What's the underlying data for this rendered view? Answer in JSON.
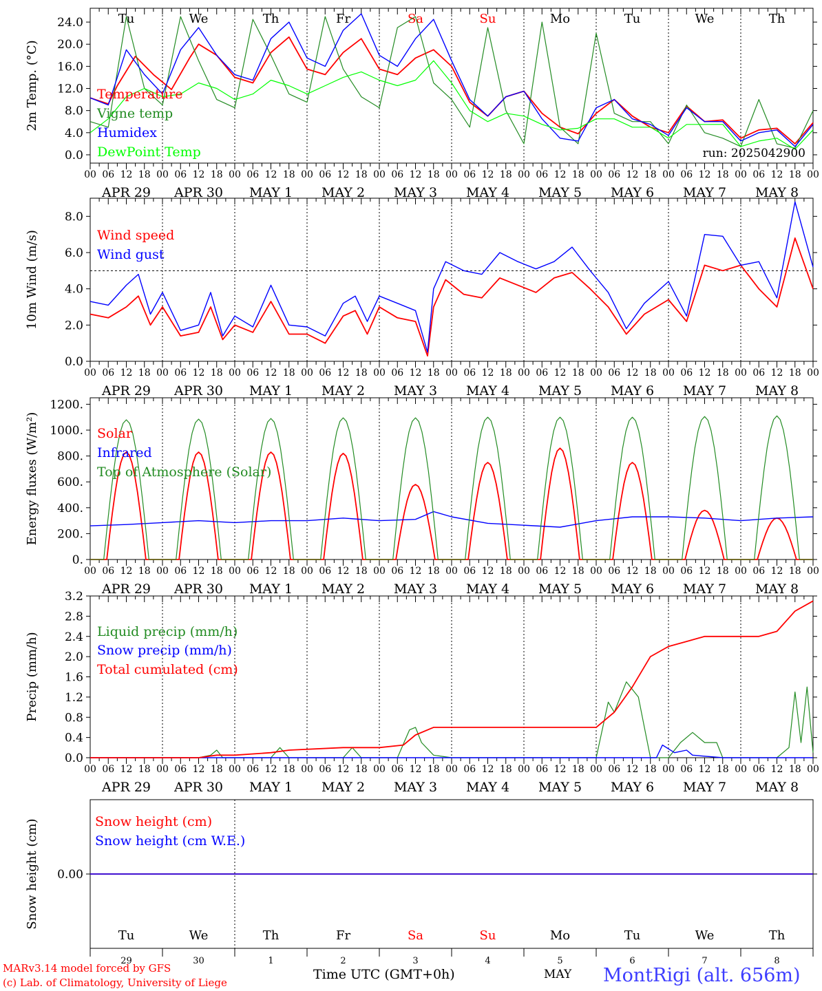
{
  "day_names": [
    "Tu",
    "We",
    "Th",
    "Fr",
    "Sa",
    "Su",
    "Mo",
    "Tu",
    "We",
    "Th"
  ],
  "weekend_days": [
    4,
    5
  ],
  "date_labels": [
    "APR 29",
    "APR 30",
    "MAY  1",
    "MAY  2",
    "MAY  3",
    "MAY  4",
    "MAY  5",
    "MAY  6",
    "MAY  7",
    "MAY  8"
  ],
  "hour_ticks": [
    "00",
    "06",
    "12",
    "18"
  ],
  "hour_end_label": "00",
  "bottom_day_numbers": [
    "29",
    "30",
    "1",
    "2",
    "3",
    "4",
    "5",
    "6",
    "7",
    "8"
  ],
  "colors": {
    "red": "#ff0000",
    "darkgreen": "#228b22",
    "blue": "#0000ff",
    "lightgreen": "#00ff00",
    "weekend": "#ff0000"
  },
  "footer": {
    "credit_line1": "MARv3.14 model forced by GFS",
    "credit_line2": "(c) Lab. of Climatology, University of Liege",
    "time_axis_label": "Time UTC (GMT+0h)",
    "month_label": "MAY",
    "station": "MontRigi (alt. 656m)"
  },
  "chart_data": [
    {
      "type": "line",
      "title": "",
      "ylabel": "2m Temp. (°C)",
      "ylim": [
        -1.5,
        26.5
      ],
      "yticks": [
        "0.0",
        "4.0",
        "8.0",
        "12.0",
        "16.0",
        "20.0",
        "24.0"
      ],
      "x_unit": "hours since APR 29 00 UTC",
      "xlim": [
        0,
        240
      ],
      "annotation": "run: 2025042900",
      "series": [
        {
          "name": "Temperature",
          "color": "red",
          "x": [
            0,
            6,
            9,
            15,
            21,
            27,
            33,
            36,
            42,
            48,
            54,
            60,
            66,
            72,
            78,
            84,
            90,
            96,
            102,
            108,
            114,
            120,
            126,
            132,
            138,
            144,
            150,
            156,
            162,
            168,
            174,
            180,
            186,
            192,
            198,
            204,
            210,
            216,
            222,
            228,
            234,
            240
          ],
          "y": [
            10.3,
            9.2,
            12.5,
            17.8,
            14.5,
            11.8,
            17.5,
            20.0,
            18.0,
            14.0,
            13.0,
            18.5,
            21.3,
            15.5,
            14.5,
            18.5,
            21.0,
            15.5,
            14.5,
            17.5,
            19.0,
            16.0,
            9.5,
            7.0,
            10.5,
            11.5,
            7.5,
            5.0,
            3.8,
            7.5,
            10.0,
            7.0,
            5.0,
            4.0,
            8.8,
            6.0,
            6.3,
            3.0,
            4.5,
            4.8,
            2.0,
            5.8
          ]
        },
        {
          "name": "Vigne temp",
          "color": "darkgreen",
          "x": [
            0,
            6,
            12,
            18,
            24,
            30,
            36,
            42,
            48,
            54,
            60,
            66,
            72,
            78,
            84,
            90,
            96,
            102,
            108,
            114,
            120,
            126,
            132,
            138,
            144,
            150,
            156,
            162,
            168,
            174,
            180,
            186,
            192,
            198,
            204,
            210,
            216,
            222,
            228,
            234,
            240
          ],
          "y": [
            6.0,
            5.0,
            25.0,
            12.0,
            9.0,
            25.0,
            17.0,
            10.0,
            8.5,
            24.5,
            18.0,
            11.0,
            9.5,
            25.0,
            15.5,
            10.5,
            8.5,
            23.0,
            25.0,
            13.0,
            10.0,
            5.0,
            23.0,
            8.0,
            2.0,
            24.0,
            5.0,
            2.0,
            22.0,
            7.5,
            6.0,
            6.0,
            2.0,
            9.0,
            4.0,
            3.0,
            1.5,
            10.0,
            2.0,
            1.2,
            8.0
          ]
        },
        {
          "name": "Humidex",
          "color": "blue",
          "x": [
            0,
            6,
            12,
            18,
            24,
            30,
            36,
            42,
            48,
            54,
            60,
            66,
            72,
            78,
            84,
            90,
            96,
            102,
            108,
            114,
            120,
            126,
            132,
            138,
            144,
            150,
            156,
            162,
            168,
            174,
            180,
            186,
            192,
            198,
            204,
            210,
            216,
            222,
            228,
            234,
            240
          ],
          "y": [
            10.3,
            9.0,
            19.0,
            14.5,
            11.0,
            19.0,
            23.0,
            18.0,
            14.5,
            13.5,
            21.0,
            24.0,
            17.5,
            16.0,
            22.5,
            25.5,
            18.0,
            16.0,
            21.0,
            24.5,
            17.0,
            10.0,
            7.0,
            10.5,
            11.5,
            6.5,
            3.0,
            2.5,
            8.5,
            10.0,
            6.5,
            5.5,
            3.5,
            8.5,
            6.0,
            6.0,
            2.5,
            4.0,
            4.5,
            1.5,
            5.5
          ]
        },
        {
          "name": "DewPoint Temp",
          "color": "lightgreen",
          "x": [
            0,
            6,
            12,
            18,
            24,
            30,
            36,
            42,
            48,
            54,
            60,
            66,
            72,
            78,
            84,
            90,
            96,
            102,
            108,
            114,
            120,
            126,
            132,
            138,
            144,
            150,
            156,
            162,
            168,
            174,
            180,
            186,
            192,
            198,
            204,
            210,
            216,
            222,
            228,
            234,
            240
          ],
          "y": [
            4.0,
            6.5,
            10.5,
            12.0,
            10.5,
            11.0,
            13.0,
            12.0,
            10.0,
            11.0,
            13.5,
            12.5,
            11.0,
            12.5,
            14.0,
            15.0,
            13.5,
            12.5,
            13.5,
            17.0,
            13.0,
            8.0,
            6.0,
            7.5,
            7.0,
            5.5,
            4.5,
            4.8,
            6.5,
            6.5,
            5.0,
            5.0,
            3.0,
            5.5,
            5.5,
            5.5,
            1.5,
            2.5,
            3.0,
            1.0,
            4.5
          ]
        }
      ]
    },
    {
      "type": "line",
      "title": "",
      "ylabel": "10m Wind (m/s)",
      "ylim": [
        0,
        9
      ],
      "yticks": [
        "0.0",
        "2.0",
        "4.0",
        "6.0",
        "8.0"
      ],
      "reference_line": 5.0,
      "x_unit": "hours since APR 29 00 UTC",
      "xlim": [
        0,
        240
      ],
      "series": [
        {
          "name": "Wind speed",
          "color": "red",
          "x": [
            0,
            6,
            12,
            16,
            20,
            24,
            30,
            36,
            40,
            44,
            48,
            54,
            60,
            66,
            72,
            78,
            84,
            88,
            92,
            96,
            102,
            108,
            112,
            114,
            118,
            124,
            130,
            136,
            142,
            148,
            154,
            160,
            166,
            172,
            178,
            184,
            192,
            198,
            204,
            210,
            216,
            222,
            228,
            234,
            240
          ],
          "y": [
            2.6,
            2.4,
            3.0,
            3.6,
            2.0,
            3.0,
            1.4,
            1.6,
            3.0,
            1.2,
            2.0,
            1.6,
            3.3,
            1.5,
            1.5,
            1.0,
            2.5,
            2.8,
            1.5,
            3.0,
            2.4,
            2.2,
            0.3,
            3.0,
            4.5,
            3.7,
            3.5,
            4.6,
            4.2,
            3.8,
            4.6,
            4.9,
            4.0,
            3.0,
            1.5,
            2.6,
            3.4,
            2.2,
            5.3,
            5.0,
            5.3,
            4.0,
            3.0,
            6.8,
            4.0
          ]
        },
        {
          "name": "Wind gust",
          "color": "blue",
          "x": [
            0,
            6,
            12,
            16,
            20,
            24,
            30,
            36,
            40,
            44,
            48,
            54,
            60,
            66,
            72,
            78,
            84,
            88,
            92,
            96,
            102,
            108,
            112,
            114,
            118,
            124,
            130,
            136,
            142,
            148,
            154,
            160,
            166,
            172,
            178,
            184,
            192,
            198,
            204,
            210,
            216,
            222,
            228,
            234,
            240
          ],
          "y": [
            3.3,
            3.1,
            4.2,
            4.8,
            2.6,
            3.8,
            1.7,
            2.0,
            3.8,
            1.4,
            2.5,
            1.9,
            4.2,
            2.0,
            1.9,
            1.4,
            3.2,
            3.6,
            2.2,
            3.6,
            3.2,
            2.8,
            0.5,
            4.0,
            5.5,
            5.0,
            4.8,
            6.0,
            5.5,
            5.1,
            5.5,
            6.3,
            5.0,
            3.8,
            1.8,
            3.2,
            4.4,
            2.5,
            7.0,
            6.9,
            5.3,
            5.5,
            3.5,
            8.8,
            5.2
          ]
        }
      ]
    },
    {
      "type": "line",
      "title": "",
      "ylabel": "Energy fluxes (W/m²)",
      "ylim": [
        0,
        1250
      ],
      "yticks": [
        "0.",
        "200.",
        "400.",
        "600.",
        "800.",
        "1000.",
        "1200."
      ],
      "x_unit": "hours since APR 29 00 UTC",
      "xlim": [
        0,
        240
      ],
      "series": [
        {
          "name": "Solar",
          "color": "red",
          "day_peaks": [
            830,
            830,
            830,
            820,
            580,
            750,
            860,
            750,
            380,
            320
          ],
          "night_value": 0
        },
        {
          "name": "Infrared",
          "color": "blue",
          "x": [
            0,
            12,
            24,
            36,
            48,
            60,
            72,
            84,
            96,
            108,
            114,
            120,
            132,
            144,
            156,
            168,
            180,
            192,
            204,
            216,
            228,
            240
          ],
          "y": [
            260,
            270,
            285,
            300,
            285,
            300,
            300,
            320,
            300,
            310,
            370,
            330,
            280,
            265,
            250,
            300,
            330,
            330,
            320,
            300,
            320,
            330
          ]
        },
        {
          "name": "Top of Atmosphere (Solar)",
          "color": "darkgreen",
          "day_peaks": [
            1080,
            1085,
            1090,
            1095,
            1095,
            1100,
            1100,
            1100,
            1105,
            1110
          ],
          "night_value": 0
        }
      ]
    },
    {
      "type": "line",
      "title": "",
      "ylabel": "Precip (mm/h)",
      "ylim": [
        0,
        3.2
      ],
      "yticks": [
        "0.0",
        "0.4",
        "0.8",
        "1.2",
        "1.6",
        "2.0",
        "2.4",
        "2.8",
        "3.2"
      ],
      "x_unit": "hours since APR 29 00 UTC",
      "xlim": [
        0,
        240
      ],
      "series": [
        {
          "name": "Liquid precip (mm/h)",
          "color": "darkgreen",
          "x": [
            0,
            36,
            40,
            42,
            44,
            48,
            60,
            63,
            66,
            84,
            87,
            90,
            102,
            106,
            108,
            110,
            114,
            120,
            168,
            172,
            174,
            178,
            182,
            184,
            186,
            192,
            196,
            200,
            204,
            208,
            210,
            228,
            232,
            234,
            236,
            238,
            240
          ],
          "y": [
            0,
            0,
            0.05,
            0.15,
            0,
            0,
            0,
            0.2,
            0,
            0,
            0.2,
            0,
            0,
            0.55,
            0.6,
            0.3,
            0.05,
            0,
            0,
            1.1,
            0.9,
            1.5,
            1.2,
            0.6,
            0,
            0,
            0.3,
            0.5,
            0.3,
            0.3,
            0,
            0,
            0.2,
            1.3,
            0.3,
            1.4,
            0.1
          ]
        },
        {
          "name": "Snow precip (mm/h)",
          "color": "blue",
          "x": [
            0,
            188,
            190,
            194,
            198,
            200,
            210,
            240
          ],
          "y": [
            0,
            0,
            0.25,
            0.1,
            0.15,
            0.05,
            0,
            0
          ]
        },
        {
          "name": "Total cumulated (cm)",
          "color": "red",
          "x": [
            0,
            36,
            42,
            48,
            60,
            66,
            84,
            90,
            96,
            104,
            108,
            114,
            120,
            168,
            174,
            180,
            186,
            192,
            198,
            204,
            216,
            222,
            228,
            234,
            240
          ],
          "y": [
            0,
            0,
            0.05,
            0.05,
            0.1,
            0.15,
            0.2,
            0.2,
            0.2,
            0.25,
            0.45,
            0.6,
            0.6,
            0.6,
            0.9,
            1.4,
            2.0,
            2.2,
            2.3,
            2.4,
            2.4,
            2.4,
            2.5,
            2.9,
            3.1
          ]
        }
      ]
    },
    {
      "type": "line",
      "title": "",
      "ylabel": "Snow height (cm)",
      "ylim": [
        -1,
        1
      ],
      "yticks": [
        "0.00"
      ],
      "x_unit": "hours since APR 29 00 UTC",
      "xlim": [
        0,
        240
      ],
      "series": [
        {
          "name": "Snow height (cm)",
          "color": "red",
          "x": [
            0,
            240
          ],
          "y": [
            0,
            0
          ]
        },
        {
          "name": "Snow height (cm W.E.)",
          "color": "blue",
          "x": [
            0,
            240
          ],
          "y": [
            0,
            0
          ]
        }
      ]
    }
  ]
}
